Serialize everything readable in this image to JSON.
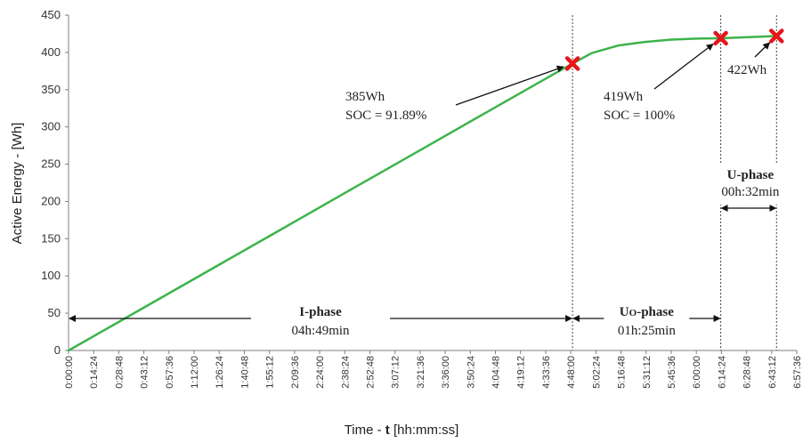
{
  "chart_data": {
    "type": "line",
    "title": "",
    "xlabel_prefix": "Time - ",
    "xlabel_var": "t",
    "xlabel_suffix": " [hh:mm:ss]",
    "ylabel": "Active Energy - [Wh]",
    "ylim": [
      0,
      450
    ],
    "yticks": [
      "0",
      "50",
      "100",
      "150",
      "200",
      "250",
      "300",
      "350",
      "400",
      "450"
    ],
    "xlim_seconds": [
      0,
      25056
    ],
    "xticks": [
      "0:00:00",
      "0:14:24",
      "0:28:48",
      "0:43:12",
      "0:57:36",
      "1:12:00",
      "1:26:24",
      "1:40:48",
      "1:55:12",
      "2:09:36",
      "2:24:00",
      "2:38:24",
      "2:52:48",
      "3:07:12",
      "3:21:36",
      "3:36:00",
      "3:50:24",
      "4:04:48",
      "4:19:12",
      "4:33:36",
      "4:48:00",
      "5:02:24",
      "5:16:48",
      "5:31:12",
      "5:45:36",
      "6:00:00",
      "6:14:24",
      "6:28:48",
      "6:43:12",
      "6:57:36"
    ],
    "grid": false,
    "series": [
      {
        "color": "#3cb44b",
        "x": [
          "0:00:00",
          "0:30:00",
          "1:00:00",
          "1:30:00",
          "2:00:00",
          "2:30:00",
          "3:00:00",
          "3:30:00",
          "4:00:00",
          "4:30:00",
          "4:49:00",
          "5:00:00",
          "5:15:00",
          "5:30:00",
          "5:45:00",
          "6:00:00",
          "6:14:00",
          "6:30:00",
          "6:46:00"
        ],
        "y": [
          0,
          40,
          80,
          120,
          160,
          200,
          240,
          280,
          320,
          360,
          385,
          399,
          409,
          414,
          417,
          418.5,
          419,
          420.5,
          422
        ]
      }
    ],
    "markers": [
      {
        "x": "4:49:00",
        "y": 385,
        "color": "#e8141a"
      },
      {
        "x": "6:14:00",
        "y": 419,
        "color": "#e8141a"
      },
      {
        "x": "6:46:00",
        "y": 422,
        "color": "#e8141a"
      }
    ],
    "annotations": [
      {
        "id": "m1",
        "lines": [
          "385Wh",
          "SOC = 91.89%"
        ]
      },
      {
        "id": "m2",
        "lines": [
          "419Wh",
          "SOC = 100%"
        ]
      },
      {
        "id": "m3",
        "lines": [
          "422Wh"
        ]
      }
    ],
    "phases": [
      {
        "id": "i",
        "name": "I-phase",
        "duration": "04h:49min",
        "start": "0:00:00",
        "end": "4:49:00"
      },
      {
        "id": "uo",
        "name_main": "U",
        "name_sub": "O",
        "name_rest": "-phase",
        "duration": "01h:25min",
        "start": "4:49:00",
        "end": "6:14:00"
      },
      {
        "id": "u",
        "name": "U-phase",
        "duration": "00h:32min",
        "start": "6:14:00",
        "end": "6:46:00"
      }
    ],
    "colors": {
      "line": "#3cb44b",
      "marker": "#e8141a",
      "axis": "#7f7f7f"
    }
  }
}
